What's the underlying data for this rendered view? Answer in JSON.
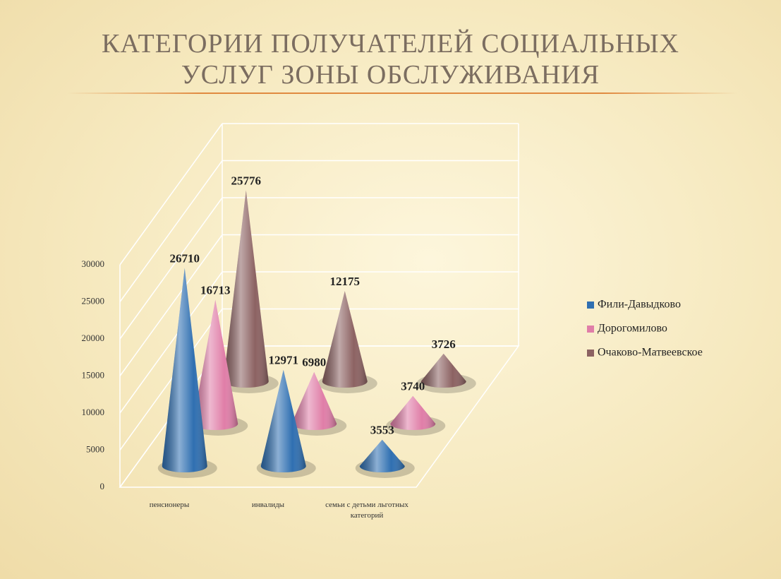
{
  "chart_data": {
    "type": "cone3d",
    "title": "КАТЕГОРИИ ПОЛУЧАТЕЛЕЙ СОЦИАЛЬНЫХ УСЛУГ ЗОНЫ ОБСЛУЖИВАНИЯ",
    "categories": [
      "пенсионеры",
      "инвалиды",
      "семьи с детьми льготных категорий"
    ],
    "series": [
      {
        "name": "Фили-Давыдково",
        "color": "#2f6fb1",
        "values": [
          26710,
          12971,
          3553
        ]
      },
      {
        "name": "Дорогомилово",
        "color": "#e07ea8",
        "values": [
          16713,
          6980,
          3740
        ]
      },
      {
        "name": "Очаково-Матвеевское",
        "color": "#8c6262",
        "values": [
          25776,
          12175,
          3726
        ]
      }
    ],
    "ylim": [
      0,
      30000
    ],
    "yticks": [
      0,
      5000,
      10000,
      15000,
      20000,
      25000,
      30000
    ],
    "grid": true,
    "legend": "right"
  }
}
